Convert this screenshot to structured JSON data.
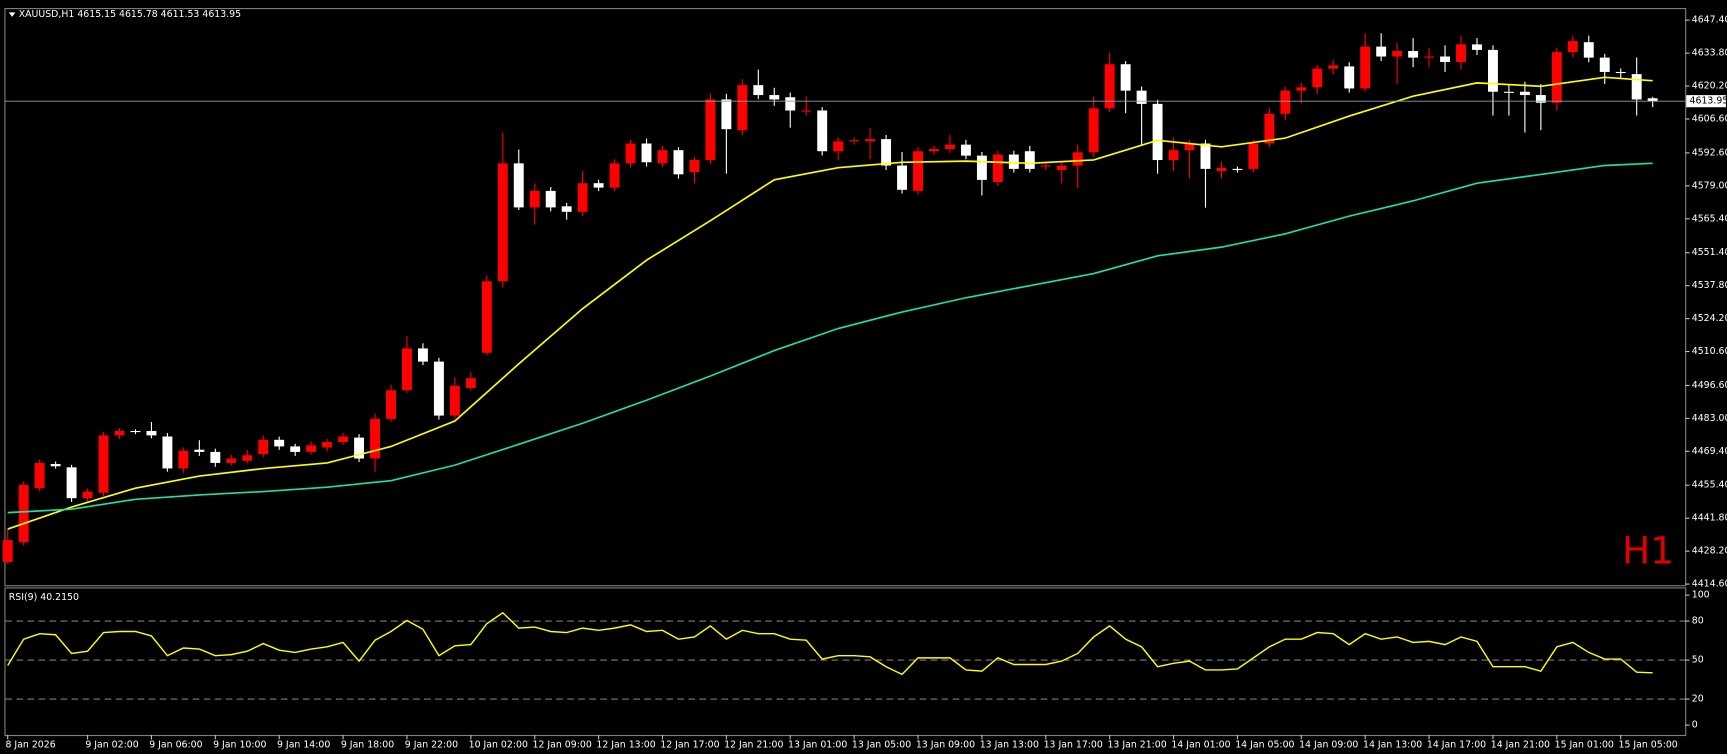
{
  "chart_data": [
    {
      "type": "candlestick",
      "title": "XAUUSD,H1  4615.15 4615.78 4611.53 4613.95",
      "annotation": "H1",
      "up_color": "#ff0000",
      "down_color": "#ffffff",
      "open": [
        4423.68,
        4431.87,
        4454.15,
        4464.15,
        4462.79,
        4450.06,
        4452.33,
        4475.98,
        4477.8,
        4477.8,
        4475.52,
        4462.34,
        4470.07,
        4469.16,
        4464.61,
        4465.52,
        4468.25,
        4474.16,
        4471.43,
        4469.16,
        4470.98,
        4473.25,
        4475.07,
        4466.43,
        4482.8,
        4494.62,
        4511.89,
        4506.44,
        4484.16,
        4495.53,
        4510.08,
        4539.63,
        4588.28,
        4570.1,
        4576.92,
        4570.55,
        4568.28,
        4580.1,
        4578.28,
        4588.28,
        4596.47,
        4588.28,
        4593.74,
        4584.65,
        4589.65,
        4614.66,
        4601.93,
        4620.57,
        4616.48,
        4615.57,
        4609.65,
        4610.11,
        4593.29,
        4597.38,
        4597.38,
        4598.29,
        4587.38,
        4576.92,
        4593.29,
        4594.19,
        4596.01,
        4591.47,
        4580.56,
        4591.92,
        4593.29,
        4586.92,
        4585.56,
        4587.38,
        4592.83,
        4611.02,
        4629.21,
        4618.29,
        4612.84,
        4589.65,
        4593.74,
        4596.47,
        4585.1,
        4586.01,
        4586.01,
        4596.47,
        4608.75,
        4618.29,
        4619.66,
        4627.39,
        4628.3,
        4619.2,
        4636.48,
        4632.39,
        4634.66,
        4631.94,
        4632.39,
        4630.12,
        4637.39,
        4635.12,
        4617.84,
        4617.84,
        4616.48,
        4613.29,
        4634.21,
        4638.3,
        4631.94,
        4626.02,
        4625.12,
        4615.15
      ],
      "high": [
        4437.3,
        4457,
        4466,
        4465.2,
        4463.8,
        4454,
        4477.5,
        4479,
        4478.5,
        4481.5,
        4477,
        4471,
        4474,
        4470.5,
        4468,
        4470,
        4476,
        4475.5,
        4472.5,
        4473.5,
        4474.5,
        4477,
        4476.5,
        4485,
        4497,
        4517,
        4514,
        4508,
        4500,
        4502,
        4542,
        4601,
        4594,
        4580,
        4578.5,
        4572,
        4585,
        4581.5,
        4590,
        4598,
        4598.5,
        4595.5,
        4595,
        4591,
        4617,
        4617,
        4623,
        4627,
        4619.5,
        4617.5,
        4616,
        4611.5,
        4599,
        4599,
        4603,
        4600,
        4593,
        4595,
        4595.5,
        4600,
        4598,
        4593,
        4593.5,
        4593.5,
        4595.5,
        4589,
        4589,
        4596,
        4616,
        4634,
        4630.5,
        4620,
        4614.5,
        4599,
        4598,
        4598,
        4589,
        4587,
        4598,
        4611,
        4620,
        4621.5,
        4629,
        4631,
        4630,
        4642,
        4642,
        4638,
        4640,
        4636,
        4637,
        4641,
        4640,
        4637,
        4621,
        4622,
        4621,
        4636,
        4641,
        4641,
        4633.5,
        4627.5,
        4632,
        4615.78
      ],
      "low": [
        4422.8,
        4430.5,
        4453,
        4462.3,
        4448.5,
        4448.8,
        4451,
        4474.5,
        4476.5,
        4474.8,
        4461,
        4460.5,
        4467.5,
        4463,
        4463.5,
        4464.5,
        4467,
        4470,
        4467.5,
        4468,
        4469.5,
        4472,
        4465,
        4461,
        4481.5,
        4493.5,
        4505,
        4482.5,
        4483,
        4494.5,
        4509,
        4537,
        4569,
        4563,
        4568.5,
        4565,
        4566.5,
        4576.8,
        4576.8,
        4586.5,
        4587,
        4586.8,
        4582,
        4580,
        4588,
        4584,
        4600,
        4614.8,
        4612,
        4603,
        4608,
        4591.5,
        4589.5,
        4596,
        4590,
        4585.5,
        4575.8,
        4575.5,
        4592,
        4592.5,
        4590,
        4575,
        4579,
        4584.5,
        4584.5,
        4585.5,
        4580,
        4578,
        4591,
        4609.5,
        4609,
        4596,
        4584,
        4585,
        4582,
        4570,
        4582,
        4584.5,
        4584.5,
        4595,
        4606,
        4613,
        4617,
        4625,
        4617.5,
        4618,
        4630.5,
        4621,
        4628,
        4628,
        4626,
        4627,
        4633,
        4608,
        4608,
        4601,
        4602,
        4610,
        4632,
        4630,
        4621,
        4623.5,
        4608,
        4611.53
      ],
      "close": [
        4432.78,
        4455.51,
        4464.61,
        4463.24,
        4450.06,
        4452.79,
        4475.98,
        4477.8,
        4477.34,
        4475.98,
        4462.34,
        4469.61,
        4469.16,
        4464.61,
        4466.43,
        4467.79,
        4474.16,
        4471.43,
        4469.16,
        4471.89,
        4473.25,
        4475.52,
        4466.43,
        4482.8,
        4494.62,
        4511.89,
        4506.44,
        4484.16,
        4496.44,
        4499.62,
        4539.63,
        4588.28,
        4570.1,
        4576.92,
        4570.1,
        4568.28,
        4580.1,
        4578.28,
        4588.28,
        4596.47,
        4588.74,
        4593.74,
        4583.75,
        4589.65,
        4614.66,
        4602.38,
        4620.57,
        4616.48,
        4614.66,
        4610.11,
        4610.11,
        4593.29,
        4597.38,
        4597.83,
        4598.29,
        4587.38,
        4577.37,
        4593.29,
        4594.19,
        4596.01,
        4591.47,
        4581.47,
        4591.92,
        4586.01,
        4586.01,
        4587.38,
        4587.38,
        4592.83,
        4611.02,
        4629.21,
        4618.29,
        4612.84,
        4589.65,
        4593.74,
        4596.47,
        4586.01,
        4586.46,
        4585.56,
        4596.47,
        4608.75,
        4618.29,
        4619.66,
        4627.39,
        4628.75,
        4619.2,
        4636.48,
        4632.39,
        4634.66,
        4631.94,
        4632.39,
        4630.12,
        4637.39,
        4635.12,
        4617.84,
        4617.39,
        4616.48,
        4613.29,
        4634.21,
        4638.76,
        4631.94,
        4626.02,
        4625.57,
        4614.66,
        4613.95
      ],
      "lines": [
        {
          "color": "#ffff00",
          "x": [
            0,
            4,
            8,
            12,
            16,
            20,
            24,
            28,
            32,
            36,
            40,
            44,
            48,
            52,
            56,
            60,
            64,
            68,
            72,
            76,
            80,
            84,
            88,
            92,
            96,
            100,
            103
          ],
          "values": [
            4437.3,
            4446.4,
            4454.2,
            4459.2,
            4462.3,
            4464.6,
            4471.4,
            4481.9,
            4505.5,
            4528.3,
            4548.3,
            4564.6,
            4581.5,
            4586.5,
            4588.7,
            4589.2,
            4588.3,
            4589.7,
            4597.8,
            4595.1,
            4598.7,
            4607.8,
            4616.0,
            4621.5,
            4620.1,
            4623.8,
            4622.4
          ]
        },
        {
          "color": "#20e0a0",
          "x": [
            0,
            4,
            8,
            12,
            16,
            20,
            24,
            28,
            32,
            36,
            40,
            44,
            48,
            52,
            56,
            60,
            64,
            68,
            72,
            76,
            80,
            84,
            88,
            92,
            96,
            100,
            103
          ],
          "values": [
            4444.1,
            4445.5,
            4449.6,
            4451.4,
            4452.8,
            4454.6,
            4457.3,
            4463.7,
            4472.3,
            4481.0,
            4490.5,
            4500.5,
            4511.0,
            4520.1,
            4526.9,
            4532.8,
            4537.8,
            4542.8,
            4550.1,
            4553.7,
            4559.2,
            4566.5,
            4572.8,
            4580.1,
            4583.7,
            4587.4,
            4588.3
          ]
        }
      ],
      "last_price": {
        "value": 4613.95,
        "label": "4613.95"
      },
      "ylim": [
        4414.15,
        4651.95
      ],
      "yticks": [
        {
          "value": 4647.4,
          "label": "4647.40"
        },
        {
          "value": 4633.8,
          "label": "4633.80"
        },
        {
          "value": 4620.2,
          "label": "4620.20"
        },
        {
          "value": 4606.6,
          "label": "4606.60"
        },
        {
          "value": 4592.6,
          "label": "4592.60"
        },
        {
          "value": 4579.0,
          "label": "4579.00"
        },
        {
          "value": 4565.4,
          "label": "4565.40"
        },
        {
          "value": 4551.4,
          "label": "4551.40"
        },
        {
          "value": 4537.8,
          "label": "4537.80"
        },
        {
          "value": 4524.2,
          "label": "4524.20"
        },
        {
          "value": 4510.6,
          "label": "4510.60"
        },
        {
          "value": 4496.6,
          "label": "4496.60"
        },
        {
          "value": 4483.0,
          "label": "4483.00"
        },
        {
          "value": 4469.4,
          "label": "4469.40"
        },
        {
          "value": 4455.4,
          "label": "4455.40"
        },
        {
          "value": 4441.8,
          "label": "4441.80"
        },
        {
          "value": 4428.2,
          "label": "4428.20"
        },
        {
          "value": 4414.6,
          "label": "4414.60"
        }
      ],
      "xticks": [
        {
          "value": 0,
          "label": "8 Jan 2026"
        },
        {
          "value": 5,
          "label": "9 Jan 02:00"
        },
        {
          "value": 9,
          "label": "9 Jan 06:00"
        },
        {
          "value": 13,
          "label": "9 Jan 10:00"
        },
        {
          "value": 17,
          "label": "9 Jan 14:00"
        },
        {
          "value": 21,
          "label": "9 Jan 18:00"
        },
        {
          "value": 25,
          "label": "9 Jan 22:00"
        },
        {
          "value": 29,
          "label": "10 Jan 02:00"
        },
        {
          "value": 33,
          "label": "12 Jan 09:00"
        },
        {
          "value": 37,
          "label": "12 Jan 13:00"
        },
        {
          "value": 41,
          "label": "12 Jan 17:00"
        },
        {
          "value": 45,
          "label": "12 Jan 21:00"
        },
        {
          "value": 49,
          "label": "13 Jan 01:00"
        },
        {
          "value": 53,
          "label": "13 Jan 05:00"
        },
        {
          "value": 57,
          "label": "13 Jan 09:00"
        },
        {
          "value": 61,
          "label": "13 Jan 13:00"
        },
        {
          "value": 65,
          "label": "13 Jan 17:00"
        },
        {
          "value": 69,
          "label": "13 Jan 21:00"
        },
        {
          "value": 73,
          "label": "14 Jan 01:00"
        },
        {
          "value": 77,
          "label": "14 Jan 05:00"
        },
        {
          "value": 81,
          "label": "14 Jan 09:00"
        },
        {
          "value": 85,
          "label": "14 Jan 13:00"
        },
        {
          "value": 89,
          "label": "14 Jan 17:00"
        },
        {
          "value": 93,
          "label": "14 Jan 21:00"
        },
        {
          "value": 97,
          "label": "15 Jan 01:00"
        },
        {
          "value": 101,
          "label": "15 Jan 05:00"
        }
      ]
    },
    {
      "type": "line",
      "title": "RSI(9) 40.2150",
      "color": "#ffff00",
      "values": [
        45.8,
        66.1,
        70.3,
        69.5,
        55.1,
        56.8,
        71.2,
        72.0,
        72.0,
        68.6,
        53.4,
        59.3,
        58.5,
        53.4,
        54.2,
        56.8,
        62.7,
        57.6,
        55.9,
        58.5,
        60.2,
        63.6,
        49.2,
        65.3,
        72.0,
        80.5,
        73.7,
        53.4,
        61.0,
        61.9,
        78.0,
        86.4,
        74.6,
        75.4,
        72.0,
        71.2,
        74.6,
        72.9,
        74.6,
        77.1,
        72.0,
        72.9,
        66.1,
        67.8,
        76.3,
        66.1,
        72.9,
        70.3,
        70.3,
        66.1,
        65.3,
        50.8,
        53.4,
        53.4,
        52.5,
        44.9,
        39.0,
        51.7,
        51.7,
        51.7,
        42.4,
        41.5,
        51.7,
        46.6,
        46.6,
        46.6,
        49.2,
        55.1,
        67.8,
        76.3,
        66.1,
        60.2,
        44.9,
        47.5,
        49.2,
        42.4,
        42.4,
        43.2,
        51.7,
        60.2,
        66.1,
        66.1,
        71.2,
        70.3,
        61.9,
        70.3,
        66.1,
        67.8,
        63.6,
        64.4,
        61.9,
        67.8,
        64.4,
        44.9,
        44.9,
        44.9,
        41.5,
        60.2,
        63.6,
        55.9,
        50.8,
        50.8,
        40.7,
        40.215
      ],
      "levels": [
        80,
        50,
        20
      ],
      "ylim": [
        -7.6,
        105.1
      ],
      "yticks": [
        100,
        80,
        50,
        20,
        0
      ]
    }
  ]
}
